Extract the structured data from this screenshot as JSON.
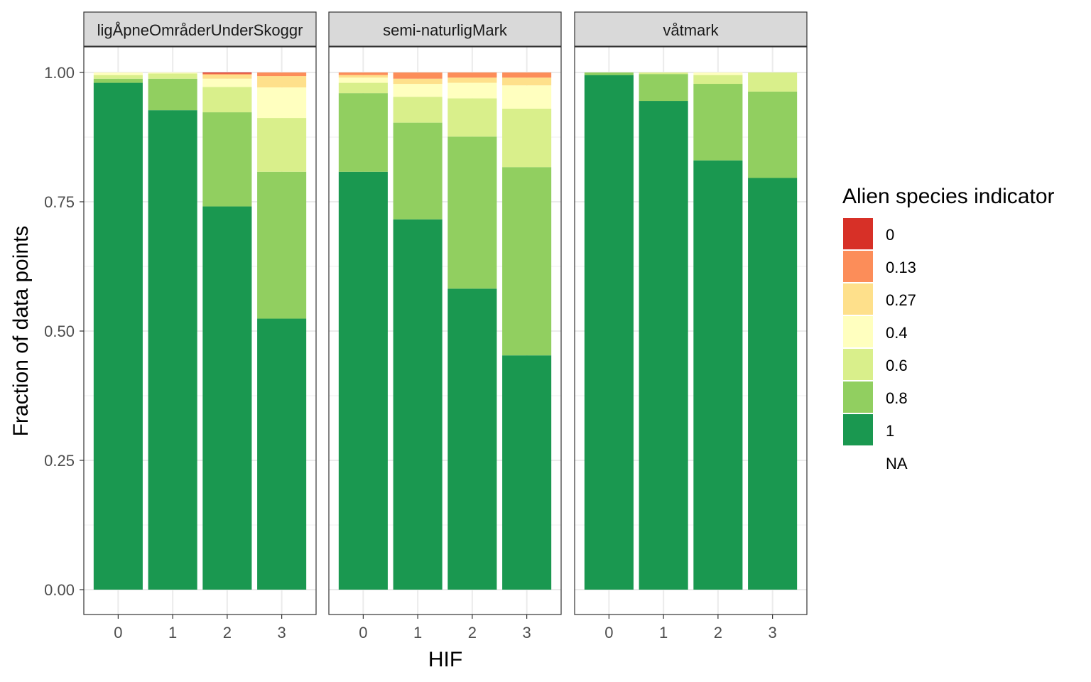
{
  "chart_data": {
    "type": "bar",
    "stacked": true,
    "position": "fill",
    "xlabel": "HIF",
    "ylabel": "Fraction of data points",
    "ylim": [
      0,
      1
    ],
    "y_ticks": [
      "0.00",
      "0.25",
      "0.50",
      "0.75",
      "1.00"
    ],
    "y_tick_values": [
      0,
      0.25,
      0.5,
      0.75,
      1
    ],
    "categories": [
      "0",
      "1",
      "2",
      "3"
    ],
    "legend": {
      "title": "Alien species indicator",
      "placement": "right",
      "entries": [
        {
          "label": "0",
          "color": "#D73027"
        },
        {
          "label": "0.13",
          "color": "#FC8D59"
        },
        {
          "label": "0.27",
          "color": "#FEE08B"
        },
        {
          "label": "0.4",
          "color": "#FFFFBF"
        },
        {
          "label": "0.6",
          "color": "#D9EF8B"
        },
        {
          "label": "0.8",
          "color": "#91CF60"
        },
        {
          "label": "1",
          "color": "#1A9850"
        },
        {
          "label": "NA",
          "color": null
        }
      ]
    },
    "panels": [
      {
        "strip": "ligÅpneOmråderUnderSkoggr",
        "bars": [
          {
            "x": "0",
            "fractions": {
              "1": 0.98,
              "0.8": 0.008,
              "0.6": 0.007,
              "0.4": 0.005
            }
          },
          {
            "x": "1",
            "fractions": {
              "1": 0.927,
              "0.8": 0.061,
              "0.6": 0.01,
              "0.4": 0.002
            }
          },
          {
            "x": "2",
            "fractions": {
              "1": 0.741,
              "0.8": 0.182,
              "0.6": 0.049,
              "0.4": 0.016,
              "0.27": 0.008,
              "0.13": 0.002,
              "0": 0.002
            }
          },
          {
            "x": "3",
            "fractions": {
              "1": 0.524,
              "0.8": 0.284,
              "0.6": 0.104,
              "0.4": 0.059,
              "0.27": 0.022,
              "0.13": 0.007
            }
          }
        ]
      },
      {
        "strip": "semi-naturligMark",
        "bars": [
          {
            "x": "0",
            "fractions": {
              "1": 0.808,
              "0.8": 0.152,
              "0.6": 0.02,
              "0.4": 0.01,
              "0.27": 0.005,
              "0.13": 0.005
            }
          },
          {
            "x": "1",
            "fractions": {
              "1": 0.716,
              "0.8": 0.187,
              "0.6": 0.05,
              "0.4": 0.025,
              "0.27": 0.01,
              "0.13": 0.012
            }
          },
          {
            "x": "2",
            "fractions": {
              "1": 0.582,
              "0.8": 0.294,
              "0.6": 0.074,
              "0.4": 0.03,
              "0.27": 0.01,
              "0.13": 0.01
            }
          },
          {
            "x": "3",
            "fractions": {
              "1": 0.453,
              "0.8": 0.364,
              "0.6": 0.113,
              "0.4": 0.045,
              "0.27": 0.015,
              "0.13": 0.01
            }
          }
        ]
      },
      {
        "strip": "våtmark",
        "bars": [
          {
            "x": "0",
            "fractions": {
              "1": 0.995,
              "0.8": 0.005
            }
          },
          {
            "x": "1",
            "fractions": {
              "1": 0.945,
              "0.8": 0.052,
              "0.6": 0.003
            }
          },
          {
            "x": "2",
            "fractions": {
              "1": 0.83,
              "0.8": 0.148,
              "0.6": 0.017,
              "0.4": 0.005
            }
          },
          {
            "x": "3",
            "fractions": {
              "1": 0.796,
              "0.8": 0.167,
              "0.6": 0.037
            }
          }
        ]
      }
    ]
  }
}
